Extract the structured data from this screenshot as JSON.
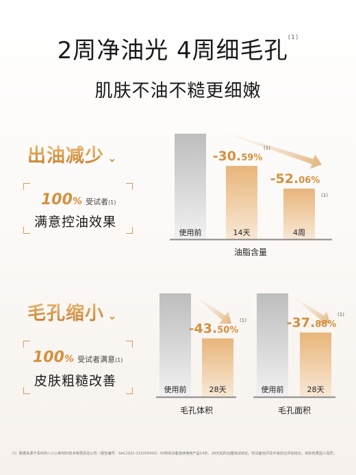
{
  "header": {
    "title": "2周净油光 4周细毛孔",
    "title_note": "(1)",
    "subtitle": "肌肤不油不糙更细嫩"
  },
  "section_oil": {
    "title": "出油减少",
    "card": {
      "percent": "100",
      "percent_sign": "%",
      "sub": "受试者",
      "sub_note": "(1)",
      "text": "满意控油效果"
    }
  },
  "section_pore": {
    "title": "毛孔缩小",
    "card": {
      "percent": "100",
      "percent_sign": "%",
      "sub": "受试者满意",
      "sub_note": "(1)",
      "text": "皮肤粗糙改善"
    }
  },
  "footnote": "（1）数据来源于深圳市八六三新材料技术有限责任公司（报告编号：SAC2022-115200402）30例受试者连续使用产品14天、28天后的仪器测试结论。受试者自评及不良反应评估结论。实际效果因人而异；",
  "colors": {
    "accent": "#d4903f",
    "bar_gray": "#c9c9c9",
    "bar_gold": "#ecc089"
  },
  "chart_data": [
    {
      "type": "bar",
      "xlabel": "油脂含量",
      "categories": [
        "使用前",
        "14天",
        "4周"
      ],
      "values": [
        100,
        69.41,
        47.94
      ],
      "labels": [
        {
          "main": "",
          "decimal": "",
          "note": ""
        },
        {
          "main": "-30.",
          "decimal": "59%",
          "note": "(1)"
        },
        {
          "main": "-52.",
          "decimal": "06%",
          "note": "(1)"
        }
      ],
      "ylim": [
        0,
        100
      ]
    },
    {
      "type": "bar",
      "xlabel": "毛孔体积",
      "categories": [
        "使用前",
        "28天"
      ],
      "values": [
        100,
        56.5
      ],
      "labels": [
        {
          "main": "",
          "decimal": "",
          "note": ""
        },
        {
          "main": "-43.",
          "decimal": "50%",
          "note": "(1)"
        }
      ],
      "ylim": [
        0,
        100
      ]
    },
    {
      "type": "bar",
      "xlabel": "毛孔面积",
      "categories": [
        "使用前",
        "28天"
      ],
      "values": [
        100,
        62.12
      ],
      "labels": [
        {
          "main": "",
          "decimal": "",
          "note": ""
        },
        {
          "main": "-37.",
          "decimal": "88%",
          "note": "(1)"
        }
      ],
      "ylim": [
        0,
        100
      ]
    }
  ]
}
